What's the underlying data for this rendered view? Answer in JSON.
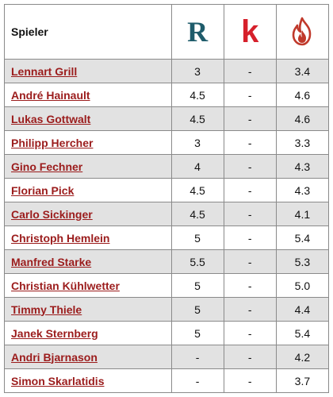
{
  "header": {
    "player_col": "Spieler",
    "source_icons": [
      "r-logo-icon",
      "k-logo-icon",
      "flame-logo-icon"
    ],
    "r_letter": "R",
    "k_letter": "k"
  },
  "colors": {
    "link": "#9b1c1c",
    "r": "#1f5c6b",
    "k": "#d6202b"
  },
  "rows": [
    {
      "name": "Lennart Grill",
      "r": "3",
      "k": "-",
      "f": "3.4"
    },
    {
      "name": "André Hainault",
      "r": "4.5",
      "k": "-",
      "f": "4.6"
    },
    {
      "name": "Lukas Gottwalt",
      "r": "4.5",
      "k": "-",
      "f": "4.6"
    },
    {
      "name": "Philipp Hercher",
      "r": "3",
      "k": "-",
      "f": "3.3"
    },
    {
      "name": "Gino Fechner",
      "r": "4",
      "k": "-",
      "f": "4.3"
    },
    {
      "name": "Florian Pick",
      "r": "4.5",
      "k": "-",
      "f": "4.3"
    },
    {
      "name": "Carlo Sickinger",
      "r": "4.5",
      "k": "-",
      "f": "4.1"
    },
    {
      "name": "Christoph Hemlein",
      "r": "5",
      "k": "-",
      "f": "5.4"
    },
    {
      "name": "Manfred Starke",
      "r": "5.5",
      "k": "-",
      "f": "5.3"
    },
    {
      "name": "Christian Kühlwetter",
      "r": "5",
      "k": "-",
      "f": "5.0"
    },
    {
      "name": "Timmy Thiele",
      "r": "5",
      "k": "-",
      "f": "4.4"
    },
    {
      "name": "Janek Sternberg",
      "r": "5",
      "k": "-",
      "f": "5.4"
    },
    {
      "name": "Andri Bjarnason",
      "r": "-",
      "k": "-",
      "f": "4.2"
    },
    {
      "name": "Simon Skarlatidis",
      "r": "-",
      "k": "-",
      "f": "3.7"
    }
  ]
}
